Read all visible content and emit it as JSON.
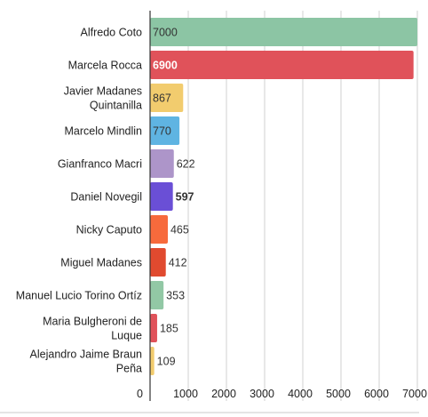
{
  "chart_data": {
    "type": "bar",
    "orientation": "horizontal",
    "categories": [
      "Alfredo Coto",
      "Marcela Rocca",
      "Javier Madanes Quintanilla",
      "Marcelo Mindlin",
      "Gianfranco Macri",
      "Daniel Novegil",
      "Nicky Caputo",
      "Miguel Madanes",
      "Manuel Lucio Torino Ortíz",
      "Maria Bulgheroni de Luque",
      "Alejandro Jaime Braun Peña"
    ],
    "category_lines": [
      [
        "Alfredo Coto"
      ],
      [
        "Marcela Rocca"
      ],
      [
        "Javier Madanes",
        "Quintanilla"
      ],
      [
        "Marcelo Mindlin"
      ],
      [
        "Gianfranco Macri"
      ],
      [
        "Daniel Novegil"
      ],
      [
        "Nicky Caputo"
      ],
      [
        "Miguel Madanes"
      ],
      [
        "Manuel Lucio Torino Ortíz"
      ],
      [
        "Maria Bulgheroni de",
        "Luque"
      ],
      [
        "Alejandro Jaime Braun",
        "Peña"
      ]
    ],
    "values": [
      7000,
      6900,
      867,
      770,
      622,
      597,
      465,
      412,
      353,
      185,
      109
    ],
    "value_labels": [
      "7000",
      "6900",
      "867",
      "770",
      "622",
      "597",
      "465",
      "412",
      "353",
      "185",
      "109"
    ],
    "colors": [
      "#8cc5a4",
      "#e0525a",
      "#f2cc6e",
      "#5fb4e2",
      "#ad95c9",
      "#6a4fd6",
      "#f76a3c",
      "#e04a2f",
      "#92c8a5",
      "#e0525a",
      "#f2cc6e"
    ],
    "label_colors": [
      "#333333",
      "#ffffff",
      "#333333",
      "#333333",
      "#333333",
      "#ffffff",
      "#333333",
      "#333333",
      "#333333",
      "#333333",
      "#333333"
    ],
    "label_bold": [
      false,
      true,
      false,
      false,
      false,
      true,
      false,
      false,
      false,
      false,
      false
    ],
    "ticks": [
      0,
      1000,
      2000,
      3000,
      4000,
      5000,
      6000,
      7000
    ],
    "tick_labels": [
      "0",
      "1000",
      "2000",
      "3000",
      "4000",
      "5000",
      "6000",
      "7000"
    ],
    "xlim": [
      0,
      7000
    ],
    "grid": true,
    "legend": "none",
    "title": "",
    "xlabel": "",
    "ylabel": ""
  }
}
